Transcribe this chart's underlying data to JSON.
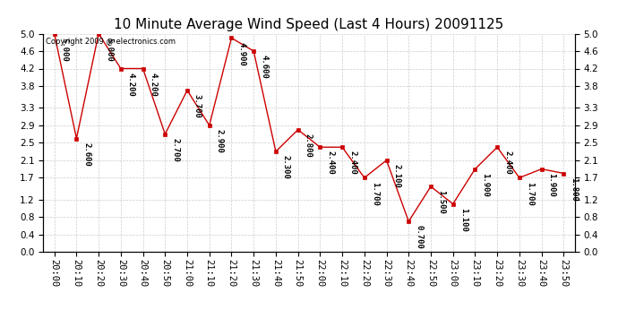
{
  "title": "10 Minute Average Wind Speed (Last 4 Hours) 20091125",
  "copyright": "Copyright 2009 @ electronics.com",
  "x_labels": [
    "20:00",
    "20:10",
    "20:20",
    "20:30",
    "20:40",
    "20:50",
    "21:00",
    "21:10",
    "21:20",
    "21:30",
    "21:40",
    "21:50",
    "22:00",
    "22:10",
    "22:20",
    "22:30",
    "22:40",
    "22:50",
    "23:00",
    "23:10",
    "23:20",
    "23:30",
    "23:40",
    "23:50"
  ],
  "y_values": [
    5.0,
    2.6,
    5.0,
    4.2,
    4.2,
    2.7,
    3.7,
    2.9,
    4.9,
    4.6,
    2.3,
    2.8,
    2.4,
    2.4,
    1.7,
    2.1,
    0.7,
    1.5,
    1.1,
    1.9,
    2.4,
    1.7,
    1.9,
    1.8
  ],
  "line_color": "#cc0000",
  "marker_color": "#cc0000",
  "ylim": [
    0.0,
    5.0
  ],
  "yticks": [
    0.0,
    0.4,
    0.8,
    1.2,
    1.7,
    2.1,
    2.5,
    2.9,
    3.3,
    3.8,
    4.2,
    4.6,
    5.0
  ],
  "bg_color": "#ffffff",
  "grid_color": "#cccccc",
  "title_fontsize": 11,
  "annotation_fontsize": 6.5,
  "tick_fontsize": 7.5,
  "copyright_fontsize": 6
}
